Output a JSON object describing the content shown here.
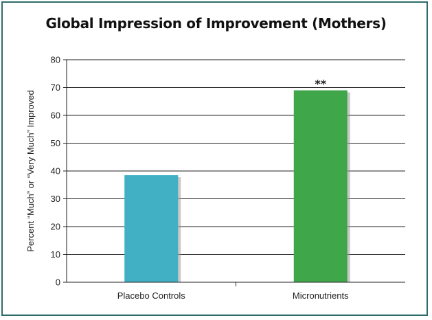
{
  "chart_data": {
    "type": "bar",
    "title": "Global Impression of Improvement (Mothers)",
    "xlabel": "",
    "ylabel": "Percent “Much” or “Very Much” Improved",
    "categories": [
      "Placebo Controls",
      "Micronutrients"
    ],
    "values": [
      38.5,
      69
    ],
    "colors": [
      "#41b0c4",
      "#3fa74a"
    ],
    "ylim": [
      0,
      80
    ],
    "yticks": [
      "0",
      "10",
      "20",
      "30",
      "40",
      "50",
      "60",
      "70",
      "80"
    ],
    "grid": true,
    "annotations": [
      {
        "category": "Micronutrients",
        "text": "**"
      }
    ]
  },
  "frame_color": "#2e6c6a"
}
